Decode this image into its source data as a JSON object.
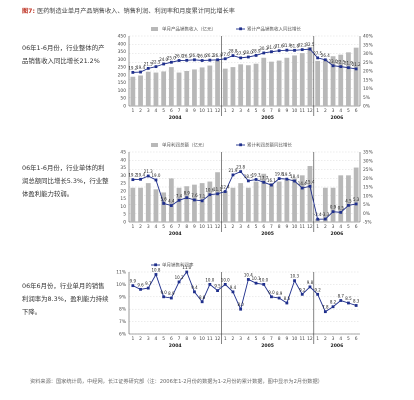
{
  "figure": {
    "number": "图7:",
    "title": "医药制造业单月产品销售收入、销售利润、利润率和月度累计同比增长率"
  },
  "notes": [
    "06年1-6月份，行业整体的产品销售收入同比增长21.2%",
    "06年1-6月份，行业单体的利润总额同比增长5.3%，行业整体盈利能力较弱。",
    "06年6月份，行业单月的销售利润率为8.3%，盈利能力持续下降。"
  ],
  "source": "资料来源：国家统计局，中经网，长江证券研究部（注：2006年1-2月份的数据为1-2月份的累计数据，图中显示为2月份数据）",
  "chart_data": [
    {
      "type": "bar",
      "secondary_type": "line",
      "legend": [
        "单月产品销售收入（亿元）",
        "累计产品销售收入同比增长"
      ],
      "categories": [
        "1",
        "2",
        "3",
        "4",
        "5",
        "6",
        "7",
        "8",
        "9",
        "10",
        "11",
        "12",
        "1",
        "2",
        "3",
        "4",
        "5",
        "6",
        "7",
        "8",
        "9",
        "10",
        "11",
        "12",
        "1",
        "2",
        "3",
        "4",
        "5",
        "6"
      ],
      "years": [
        "2004",
        "2005",
        "2006"
      ],
      "y_left": {
        "ticks": [
          "0",
          "50",
          "100",
          "150",
          "200",
          "250",
          "300",
          "350",
          "400",
          "450"
        ],
        "lim": [
          0,
          450
        ]
      },
      "y_right": {
        "ticks": [
          "0%",
          "5%",
          "10%",
          "15%",
          "20%",
          "25%",
          "30%",
          "35%",
          "40%"
        ],
        "lim": [
          0,
          40
        ]
      },
      "bars": [
        188,
        196,
        220,
        215,
        222,
        250,
        215,
        225,
        235,
        248,
        260,
        300,
        240,
        250,
        268,
        262,
        272,
        310,
        285,
        292,
        310,
        325,
        340,
        380,
        290,
        300,
        320,
        330,
        345,
        375
      ],
      "line": [
        19.2,
        19.4,
        21.5,
        22.5,
        24.0,
        25.0,
        26.0,
        26.1,
        26.4,
        26.0,
        26.2,
        26.4,
        27.0,
        28.8,
        27.5,
        28.0,
        28.9,
        30.3,
        31.0,
        31.6,
        31.9,
        31.8,
        32.2,
        32.5,
        27.5,
        26.4,
        23.0,
        22.5,
        21.9,
        21.2
      ],
      "labels": [
        "19.2",
        "19.4",
        "21.5",
        "22.5",
        "24.0",
        "25.0",
        "26.0",
        "26.1",
        "26.4",
        "26.0",
        "26.2",
        "26.4",
        "27.0",
        "28.8",
        "27.5",
        "28.0",
        "28.9",
        "30.3",
        "31.0",
        "31.6",
        "31.9",
        "31.8",
        "32.2",
        "32.5",
        "27.5",
        "26.4",
        "23.0",
        "22.5",
        "21.9",
        "21.2"
      ]
    },
    {
      "type": "bar",
      "secondary_type": "line",
      "legend": [
        "单月利润总额（亿元）",
        "累计利润总额同比增长"
      ],
      "categories": [
        "1",
        "2",
        "3",
        "4",
        "5",
        "6",
        "7",
        "8",
        "9",
        "10",
        "11",
        "12",
        "1",
        "2",
        "3",
        "4",
        "5",
        "6",
        "7",
        "8",
        "9",
        "10",
        "11",
        "12",
        "1",
        "2",
        "3",
        "4",
        "5",
        "6"
      ],
      "years": [
        "2004",
        "2005",
        "2006"
      ],
      "y_left": {
        "ticks": [
          "0",
          "5",
          "10",
          "15",
          "20",
          "25",
          "30",
          "35",
          "40",
          "45"
        ],
        "lim": [
          0,
          45
        ]
      },
      "y_right": {
        "ticks": [
          "-5%",
          "0%",
          "5%",
          "10%",
          "15%",
          "20%",
          "25%",
          "30%",
          "35%"
        ],
        "lim": [
          -5,
          35
        ]
      },
      "bars": [
        22,
        22,
        25,
        21,
        19,
        28,
        22,
        23,
        24,
        25,
        26,
        32,
        20,
        22,
        25,
        22,
        26,
        31,
        25,
        26,
        27,
        28,
        30,
        36,
        2,
        22,
        22,
        30,
        30,
        35
      ],
      "line": [
        19.2,
        19.4,
        21.3,
        19.0,
        5.6,
        4.4,
        7.4,
        8.9,
        7.6,
        7.1,
        10.6,
        11.1,
        12.4,
        21.9,
        23.8,
        18.5,
        19.3,
        17.7,
        16.1,
        19.8,
        19.5,
        18.4,
        14.4,
        15.4,
        -3.4,
        -3.3,
        0.9,
        0.5,
        4.5,
        5.3
      ],
      "labels": [
        "19.2",
        "19.4",
        "21.3",
        "19.0",
        "5.6",
        "4.4",
        "7.4",
        "8.9",
        "7.6",
        "7.1",
        "10.6",
        "11.1",
        "12.4",
        "21.9",
        "23.8",
        "18.5",
        "19.3",
        "17.7",
        "16.1",
        "19.8",
        "19.5",
        "18.4",
        "14.4",
        "15.4",
        "-3.4",
        "-3.3",
        "0.9",
        "0.5",
        "4.5",
        "5.3"
      ]
    },
    {
      "type": "line",
      "legend": [
        "单月销售利润率"
      ],
      "categories": [
        "1",
        "2",
        "3",
        "4",
        "5",
        "6",
        "7",
        "8",
        "9",
        "10",
        "11",
        "12",
        "1",
        "2",
        "3",
        "4",
        "5",
        "6",
        "7",
        "8",
        "9",
        "10",
        "11",
        "12",
        "1",
        "2",
        "3",
        "4",
        "5",
        "6"
      ],
      "years": [
        "2004",
        "2005",
        "2006"
      ],
      "y": {
        "ticks": [
          "6%",
          "7%",
          "8%",
          "9%",
          "10%",
          "11%"
        ],
        "lim": [
          6,
          11
        ]
      },
      "values": [
        9.9,
        9.6,
        9.7,
        10.8,
        9.0,
        8.9,
        10.2,
        11.0,
        9.4,
        8.6,
        10.0,
        9.5,
        10.0,
        9.4,
        8.0,
        10.4,
        10.1,
        10.0,
        9.0,
        8.9,
        8.5,
        10.3,
        9.2,
        9.8,
        9.2,
        7.8,
        8.2,
        8.7,
        8.5,
        8.3
      ],
      "labels": [
        "9.9",
        "9.6",
        "9.7",
        "10.8",
        "9.0",
        "8.9",
        "10.2",
        "11.0",
        "9.4",
        "8.6",
        "10.0",
        "9.5",
        "10.0",
        "9.4",
        "8.0",
        "10.4",
        "10.1",
        "10.0",
        "9.0",
        "8.9",
        "8.5",
        "10.3",
        "9.2",
        "9.8",
        "9.2",
        "7.8",
        "8.2",
        "8.7",
        "8.5",
        "8.3"
      ]
    }
  ],
  "colors": {
    "bar": "#b8b8b8",
    "line": "#1f2f8c",
    "marker_fill": "#1f2f8c",
    "grid": "#cfcfcf",
    "separator": "#333333"
  }
}
